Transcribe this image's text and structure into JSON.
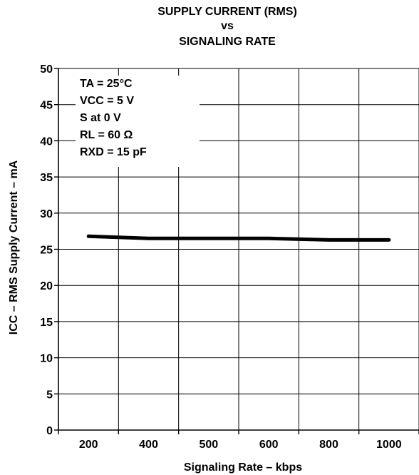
{
  "title": {
    "line1": "SUPPLY CURRENT (RMS)",
    "line2": "vs",
    "line3": "SIGNALING RATE"
  },
  "conditions": {
    "ta": "TA = 25°C",
    "vcc": "VCC = 5 V",
    "s": "S at 0 V",
    "rl": "RL = 60 Ω",
    "rxd": "RXD = 15 pF"
  },
  "chart_data": {
    "type": "line",
    "title": "SUPPLY CURRENT (RMS) vs SIGNALING RATE",
    "xlabel": "Signaling Rate  – kbps",
    "ylabel": "ICC – RMS Supply Current – mA",
    "x_tick_labels": [
      "200",
      "400",
      "500",
      "600",
      "800",
      "1000"
    ],
    "y_ticks": [
      0,
      5,
      10,
      15,
      20,
      25,
      30,
      35,
      40,
      45,
      50
    ],
    "ylim": [
      0,
      50
    ],
    "grid": true,
    "series": [
      {
        "x": [
          200,
          400,
          500,
          600,
          800,
          1000
        ],
        "values": [
          26.8,
          26.5,
          26.5,
          26.5,
          26.3,
          26.3
        ]
      }
    ],
    "line_color": "#000000"
  }
}
